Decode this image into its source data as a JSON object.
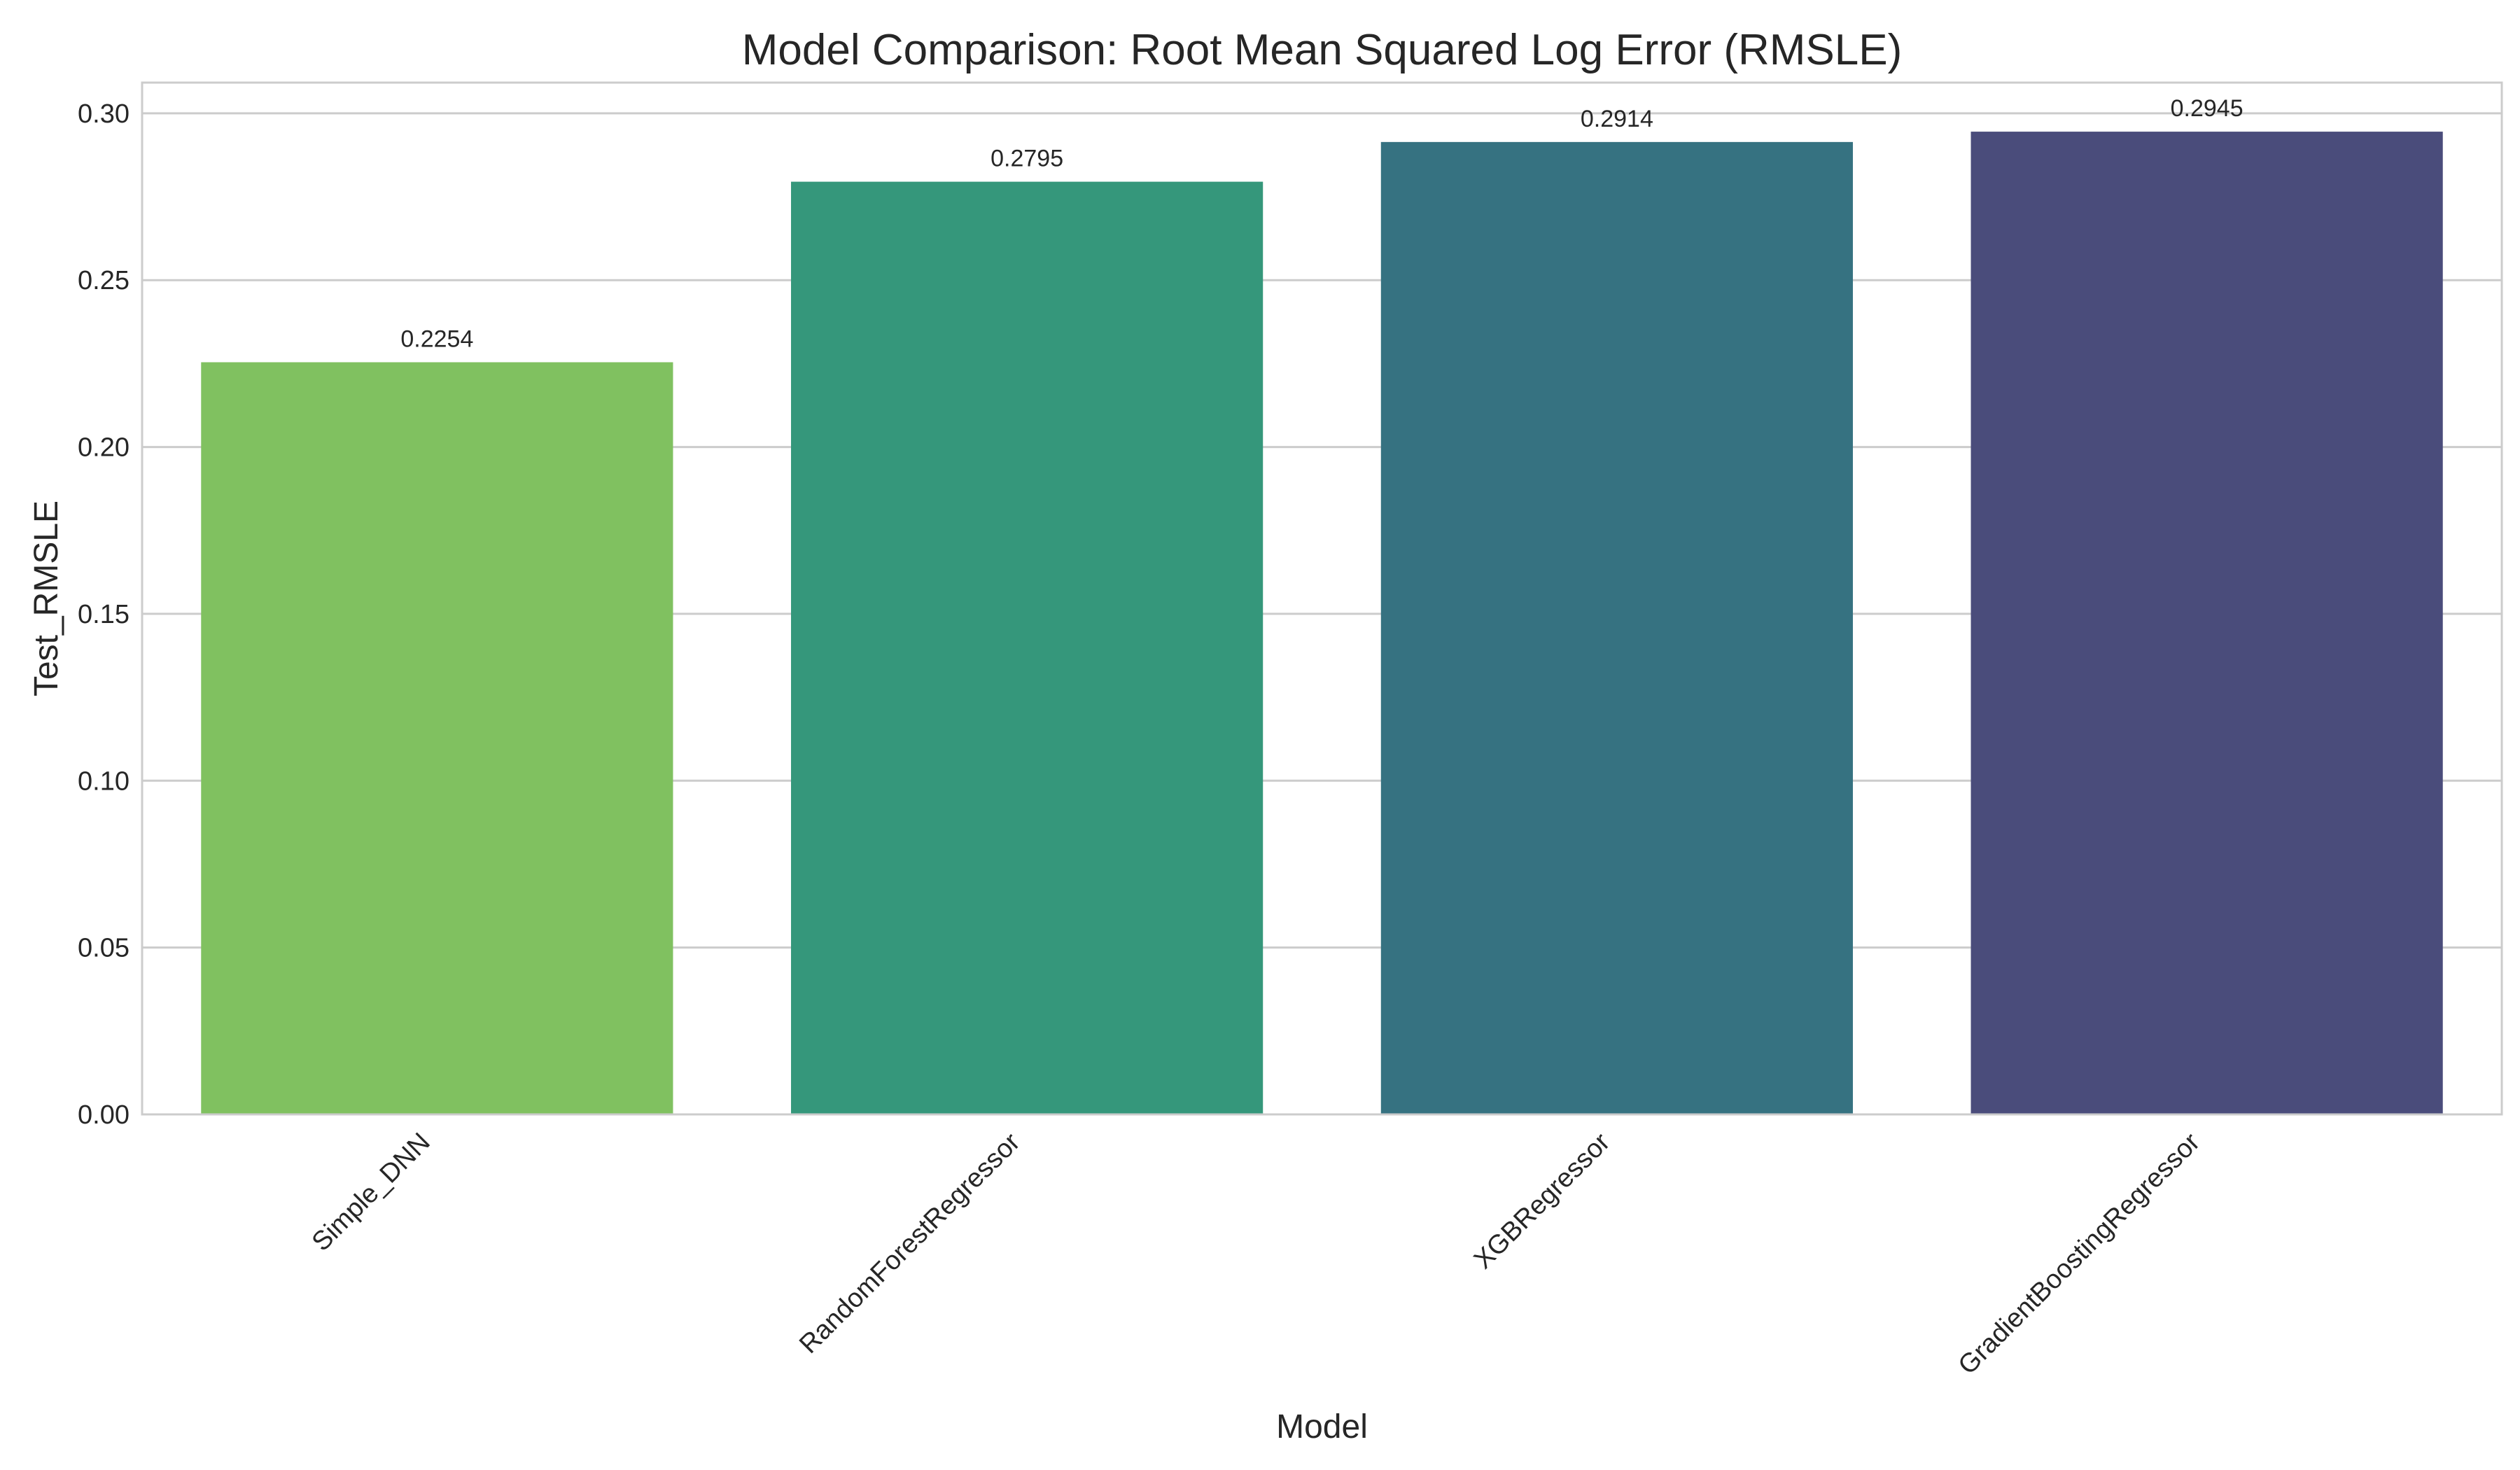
{
  "chart_data": {
    "type": "bar",
    "title": "Model Comparison: Root Mean Squared Log Error (RMSLE)",
    "xlabel": "Model",
    "ylabel": "Test_RMSLE",
    "categories": [
      "Simple_DNN",
      "RandomForestRegressor",
      "XGBRegressor",
      "GradientBoostingRegressor"
    ],
    "values": [
      0.2254,
      0.2795,
      0.2914,
      0.2945
    ],
    "value_labels": [
      "0.2254",
      "0.2795",
      "0.2914",
      "0.2945"
    ],
    "colors": [
      "#80c160",
      "#35977b",
      "#367281",
      "#4a4c7b"
    ],
    "ylim": [
      0,
      0.3092
    ],
    "yticks": [
      0.0,
      0.05,
      0.1,
      0.15,
      0.2,
      0.25,
      0.3
    ],
    "ytick_labels": [
      "0.00",
      "0.05",
      "0.10",
      "0.15",
      "0.20",
      "0.25",
      "0.30"
    ],
    "grid": "horizontal",
    "legend": "none"
  }
}
